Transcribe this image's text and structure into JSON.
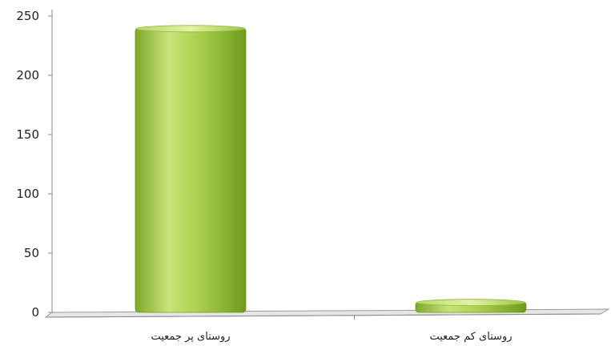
{
  "chart_data": {
    "type": "bar",
    "categories": [
      "روستای پر جمعیت",
      "روستای کم جمعیت"
    ],
    "values": [
      240,
      9
    ],
    "ylim": [
      0,
      250
    ],
    "yticks": [
      0,
      50,
      100,
      150,
      200,
      250
    ],
    "grid": false,
    "legend": "none",
    "title": "",
    "xlabel": "",
    "ylabel": "",
    "bar_color": "#9cc33b",
    "bar_highlight": "#dcef9a",
    "bar_shadow": "#6f9a1c"
  }
}
